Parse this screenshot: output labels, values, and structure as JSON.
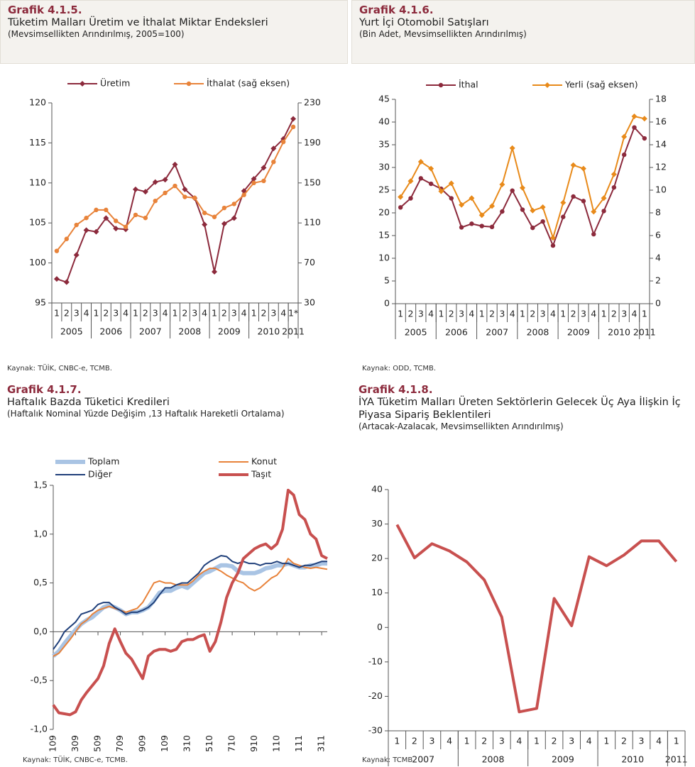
{
  "chart_data": [
    {
      "type": "line",
      "label": "Grafik 4.1.5.",
      "title": "Tüketim Malları Üretim ve İthalat Miktar Endeksleri",
      "subtitle": "(Mevsimsellikten Arındırılmış, 2005=100)",
      "source": "Kaynak: TÜİK, CNBC-e, TCMB.",
      "groups": [
        {
          "label": "2005",
          "categories": [
            "1",
            "2",
            "3",
            "4"
          ]
        },
        {
          "label": "2006",
          "categories": [
            "1",
            "2",
            "3",
            "4"
          ]
        },
        {
          "label": "2007",
          "categories": [
            "1",
            "2",
            "3",
            "4"
          ]
        },
        {
          "label": "2008",
          "categories": [
            "1",
            "2",
            "3",
            "4"
          ]
        },
        {
          "label": "2009",
          "categories": [
            "1",
            "2",
            "3",
            "4"
          ]
        },
        {
          "label": "2010",
          "categories": [
            "1",
            "2",
            "3",
            "4"
          ]
        },
        {
          "label": "2011",
          "categories": [
            "1*"
          ]
        }
      ],
      "series": [
        {
          "name": "Üretim",
          "color": "#8c2a3c",
          "marker": "diamond",
          "line_width": 2,
          "values": [
            98.0,
            97.6,
            101.0,
            104.1,
            103.9,
            105.6,
            104.3,
            104.2,
            109.2,
            108.9,
            110.1,
            110.4,
            112.3,
            109.2,
            108.1,
            104.8,
            98.9,
            104.9,
            105.6,
            109.0,
            110.5,
            111.9,
            114.3,
            115.5,
            118.0
          ]
        },
        {
          "name": "İthalat (sağ eksen)",
          "color": "#e8833a",
          "marker": "circle",
          "line_width": 2,
          "axis": "y2",
          "values": [
            82,
            94,
            108,
            115,
            123,
            123,
            112,
            106,
            118,
            115,
            132,
            140,
            147,
            136,
            135,
            120,
            116,
            125,
            129,
            138,
            150,
            152,
            171,
            191,
            206
          ]
        }
      ],
      "ylim": [
        95,
        120
      ],
      "yticks": [
        95,
        100,
        105,
        110,
        115,
        120
      ],
      "y2lim": [
        30,
        230
      ],
      "y2ticks": [
        30,
        70,
        110,
        150,
        190,
        230
      ],
      "grid": false
    },
    {
      "type": "line",
      "label": "Grafik 4.1.6.",
      "title": "Yurt İçi Otomobil Satışları",
      "subtitle": "(Bin Adet, Mevsimsellikten Arındırılmış)",
      "source": "Kaynak: ODD, TCMB.",
      "groups": [
        {
          "label": "2005",
          "categories": [
            "1",
            "2",
            "3",
            "4"
          ]
        },
        {
          "label": "2006",
          "categories": [
            "1",
            "2",
            "3",
            "4"
          ]
        },
        {
          "label": "2007",
          "categories": [
            "1",
            "2",
            "3",
            "4"
          ]
        },
        {
          "label": "2008",
          "categories": [
            "1",
            "2",
            "3",
            "4"
          ]
        },
        {
          "label": "2009",
          "categories": [
            "1",
            "2",
            "3",
            "4"
          ]
        },
        {
          "label": "2010",
          "categories": [
            "1",
            "2",
            "3",
            "4"
          ]
        },
        {
          "label": "2011",
          "categories": [
            "1"
          ]
        }
      ],
      "series": [
        {
          "name": "İthal",
          "color": "#8c2a3c",
          "marker": "circle",
          "line_width": 2,
          "values": [
            21.2,
            23.2,
            27.6,
            26.4,
            25.3,
            23.2,
            16.8,
            17.6,
            17.1,
            16.9,
            20.3,
            24.9,
            20.7,
            16.7,
            18.1,
            12.8,
            19.1,
            23.6,
            22.6,
            15.3,
            20.4,
            25.6,
            32.8,
            38.8,
            36.4
          ]
        },
        {
          "name": "Yerli (sağ eksen)",
          "color": "#e88a1a",
          "marker": "diamond",
          "line_width": 2,
          "axis": "y2",
          "values": [
            9.4,
            10.8,
            12.5,
            11.9,
            9.9,
            10.6,
            8.7,
            9.3,
            7.8,
            8.6,
            10.5,
            13.7,
            10.2,
            8.2,
            8.5,
            5.8,
            8.9,
            12.2,
            11.9,
            8.1,
            9.3,
            11.4,
            14.7,
            16.5,
            16.3
          ]
        }
      ],
      "ylim": [
        0,
        45
      ],
      "yticks": [
        0,
        5,
        10,
        15,
        20,
        25,
        30,
        35,
        40,
        45
      ],
      "y2lim": [
        0,
        18
      ],
      "y2ticks": [
        0,
        2,
        4,
        6,
        8,
        10,
        12,
        14,
        16,
        18
      ],
      "grid": false
    },
    {
      "type": "line",
      "label": "Grafik 4.1.7.",
      "title": "Haftalık Bazda Tüketici Kredileri",
      "subtitle": "(Haftalık Nominal Yüzde Değişim ,13 Haftalık Hareketli Ortalama)",
      "source": "Kaynak: TÜİK, CNBC-e, TCMB.",
      "categories": [
        "0109",
        null,
        null,
        null,
        "0309",
        null,
        null,
        null,
        "0509",
        null,
        null,
        null,
        "0709",
        null,
        null,
        null,
        "0909",
        null,
        null,
        null,
        "1109",
        null,
        null,
        null,
        "0310",
        null,
        null,
        null,
        "0510",
        null,
        null,
        null,
        "0710",
        null,
        null,
        null,
        "0910",
        null,
        null,
        null,
        "1110",
        null,
        null,
        null,
        "0111",
        null,
        null,
        null,
        "0311",
        null
      ],
      "series": [
        {
          "name": "Toplam",
          "color": "#a9c4e4",
          "line_width": 6,
          "values": [
            -0.25,
            -0.2,
            -0.12,
            -0.05,
            0.02,
            0.08,
            0.12,
            0.15,
            0.2,
            0.25,
            0.27,
            0.25,
            0.22,
            0.18,
            0.2,
            0.2,
            0.22,
            0.25,
            0.32,
            0.4,
            0.42,
            0.42,
            0.45,
            0.47,
            0.45,
            0.5,
            0.55,
            0.6,
            0.62,
            0.65,
            0.68,
            0.68,
            0.67,
            0.62,
            0.6,
            0.6,
            0.6,
            0.62,
            0.65,
            0.66,
            0.68,
            0.68,
            0.7,
            0.68,
            0.66,
            0.66,
            0.68,
            0.68,
            0.7,
            0.7
          ]
        },
        {
          "name": "Konut",
          "color": "#e8823a",
          "line_width": 2,
          "values": [
            -0.25,
            -0.22,
            -0.15,
            -0.08,
            0,
            0.08,
            0.12,
            0.18,
            0.22,
            0.24,
            0.26,
            0.24,
            0.22,
            0.2,
            0.22,
            0.24,
            0.3,
            0.4,
            0.5,
            0.52,
            0.5,
            0.5,
            0.48,
            0.48,
            0.48,
            0.52,
            0.58,
            0.62,
            0.65,
            0.65,
            0.62,
            0.58,
            0.55,
            0.52,
            0.5,
            0.45,
            0.42,
            0.45,
            0.5,
            0.55,
            0.58,
            0.65,
            0.75,
            0.7,
            0.68,
            0.66,
            0.65,
            0.66,
            0.65,
            0.64
          ]
        },
        {
          "name": "Diğer",
          "color": "#1f3f7a",
          "line_width": 2,
          "values": [
            -0.18,
            -0.1,
            0,
            0.05,
            0.1,
            0.18,
            0.2,
            0.22,
            0.28,
            0.3,
            0.3,
            0.25,
            0.22,
            0.18,
            0.2,
            0.2,
            0.22,
            0.25,
            0.3,
            0.38,
            0.45,
            0.45,
            0.48,
            0.5,
            0.5,
            0.55,
            0.6,
            0.68,
            0.72,
            0.75,
            0.78,
            0.77,
            0.72,
            0.7,
            0.72,
            0.7,
            0.7,
            0.68,
            0.7,
            0.7,
            0.72,
            0.7,
            0.7,
            0.68,
            0.66,
            0.68,
            0.68,
            0.7,
            0.72,
            0.72
          ]
        },
        {
          "name": "Taşıt",
          "color": "#c8504f",
          "line_width": 4,
          "values": [
            -0.75,
            -0.83,
            -0.84,
            -0.85,
            -0.82,
            -0.7,
            -0.62,
            -0.55,
            -0.48,
            -0.35,
            -0.12,
            0.03,
            -0.1,
            -0.22,
            -0.28,
            -0.38,
            -0.48,
            -0.25,
            -0.2,
            -0.18,
            -0.18,
            -0.2,
            -0.18,
            -0.1,
            -0.08,
            -0.08,
            -0.05,
            -0.03,
            -0.2,
            -0.1,
            0.1,
            0.35,
            0.5,
            0.6,
            0.75,
            0.8,
            0.85,
            0.88,
            0.9,
            0.85,
            0.9,
            1.05,
            1.45,
            1.4,
            1.2,
            1.15,
            1.0,
            0.95,
            0.78,
            0.75
          ]
        }
      ],
      "ylim": [
        -1,
        1.5
      ],
      "yticks": [
        {
          "value": -1,
          "label": "-1,0"
        },
        {
          "value": -0.5,
          "label": "-0,5"
        },
        {
          "value": 0,
          "label": "0,0"
        },
        {
          "value": 0.5,
          "label": "0,5"
        },
        {
          "value": 1,
          "label": "1,0"
        },
        {
          "value": 1.5,
          "label": "1,5"
        }
      ],
      "grid": false
    },
    {
      "type": "line",
      "label": "Grafik 4.1.8.",
      "title": "İYA Tüketim Malları Üreten Sektörlerin Gelecek Üç Aya İlişkin İç Piyasa Sipariş Beklentileri",
      "subtitle": "(Artacak-Azalacak, Mevsimsellikten Arındırılmış)",
      "source": "Kaynak: TCMB.",
      "groups": [
        {
          "label": "2007",
          "categories": [
            "1",
            "2",
            "3",
            "4"
          ]
        },
        {
          "label": "2008",
          "categories": [
            "1",
            "2",
            "3",
            "4"
          ]
        },
        {
          "label": "2009",
          "categories": [
            "1",
            "2",
            "3",
            "4"
          ]
        },
        {
          "label": "2010",
          "categories": [
            "1",
            "2",
            "3",
            "4"
          ]
        },
        {
          "label": "2011",
          "categories": [
            "1"
          ]
        }
      ],
      "series": [
        {
          "color": "#c8504f",
          "line_width": 4,
          "values": [
            29.8,
            20.2,
            24.3,
            22.2,
            19.0,
            13.8,
            3.0,
            -24.5,
            -23.5,
            8.4,
            0.5,
            20.5,
            17.9,
            21.0,
            25.1,
            25.1,
            19.1
          ]
        }
      ],
      "ylim": [
        -30,
        40
      ],
      "yticks": [
        -30,
        -20,
        -10,
        0,
        10,
        20,
        30,
        40
      ],
      "grid": false
    }
  ]
}
